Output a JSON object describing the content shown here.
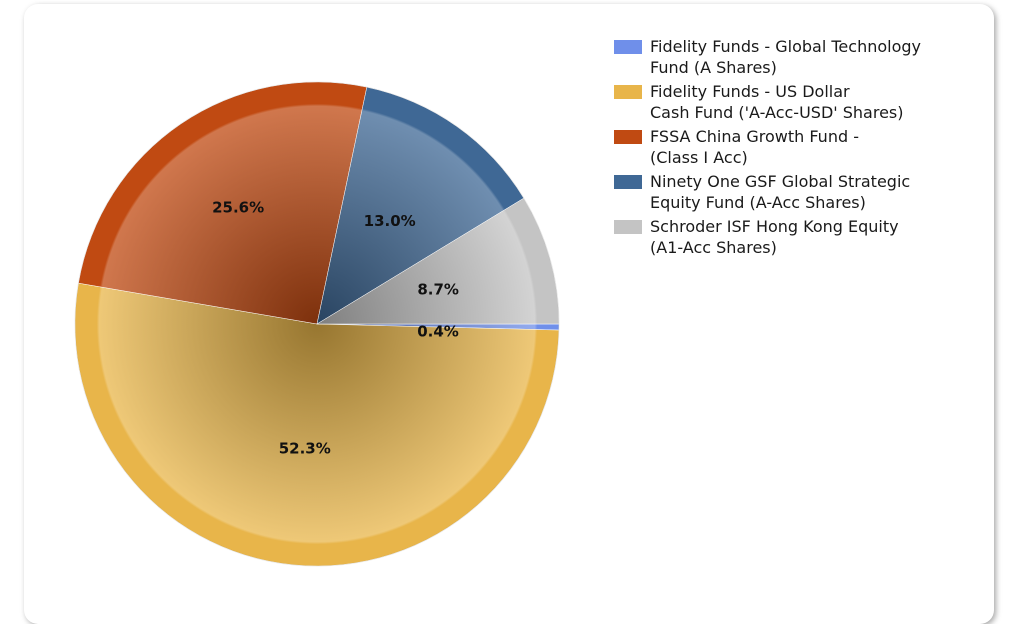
{
  "chart_data": {
    "type": "pie",
    "title": "",
    "legend_position": "right",
    "slices": [
      {
        "name": "Fidelity Funds - Global Technology\nFund (A Shares)",
        "value": 0.4,
        "label": "0.4%",
        "color": "#6f8fea"
      },
      {
        "name": "Fidelity Funds - US Dollar\nCash Fund ('A-Acc-USD' Shares)",
        "value": 52.3,
        "label": "52.3%",
        "color": "#e8b54a"
      },
      {
        "name": "FSSA China Growth Fund -\n(Class I Acc)",
        "value": 25.6,
        "label": "25.6%",
        "color": "#c04a12"
      },
      {
        "name": "Ninety One GSF Global Strategic\nEquity Fund (A-Acc Shares)",
        "value": 13.0,
        "label": "13.0%",
        "color": "#3f6895"
      },
      {
        "name": "Schroder ISF Hong Kong Equity\n(A1-Acc  Shares)",
        "value": 8.7,
        "label": "8.7%",
        "color": "#c4c4c4"
      }
    ]
  }
}
